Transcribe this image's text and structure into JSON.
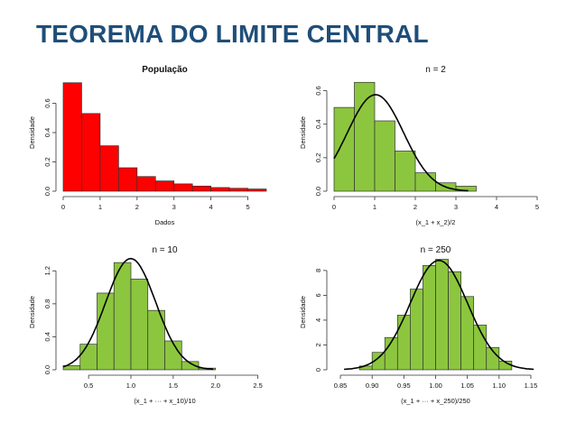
{
  "page": {
    "title": "TEOREMA DO LIMITE CENTRAL"
  },
  "colors": {
    "title": "#1f4e79",
    "population_bar": "#ff0000",
    "sample_bar": "#8cc63f",
    "curve": "#000000"
  },
  "chart_data": [
    {
      "type": "bar",
      "title": "População",
      "xlabel": "Dados",
      "ylabel": "Densidade",
      "bin_width": 0.5,
      "bins_start": 0,
      "values": [
        0.74,
        0.53,
        0.31,
        0.16,
        0.1,
        0.07,
        0.05,
        0.035,
        0.025,
        0.02,
        0.015
      ],
      "xlim": [
        0,
        5.5
      ],
      "ylim": [
        0,
        0.8
      ],
      "xticks": [
        "0",
        "1",
        "2",
        "3",
        "4",
        "5"
      ],
      "xtick_values": [
        0,
        1,
        2,
        3,
        4,
        5
      ],
      "yticks": [
        "0.0",
        "0.2",
        "0.4",
        "0.6"
      ],
      "ytick_values": [
        0,
        0.2,
        0.4,
        0.6
      ],
      "bar_color": "#ff0000",
      "curve": false
    },
    {
      "type": "bar",
      "title": "n = 2",
      "xlabel": "(x_1 + x_2)/2",
      "ylabel": "Densidade",
      "bin_width": 0.5,
      "bins_start": 0,
      "values": [
        0.5,
        0.65,
        0.42,
        0.24,
        0.11,
        0.05,
        0.03
      ],
      "xlim": [
        0,
        5
      ],
      "ylim": [
        0,
        0.7
      ],
      "xticks": [
        "0",
        "1",
        "2",
        "3",
        "4",
        "5"
      ],
      "xtick_values": [
        0,
        1,
        2,
        3,
        4,
        5
      ],
      "yticks": [
        "0.0",
        "0.2",
        "0.4",
        "0.6"
      ],
      "ytick_values": [
        0,
        0.2,
        0.4,
        0.6
      ],
      "bar_color": "#8cc63f",
      "curve": true
    },
    {
      "type": "bar",
      "title": "n = 10",
      "xlabel": "(x_1 + ··· + x_10)/10",
      "ylabel": "Densidade",
      "bin_width": 0.2,
      "bins_start": 0.2,
      "values": [
        0.05,
        0.31,
        0.93,
        1.3,
        1.1,
        0.72,
        0.35,
        0.1,
        0.02
      ],
      "xlim": [
        0.2,
        2.6
      ],
      "ylim": [
        0,
        1.4
      ],
      "xticks": [
        "0.5",
        "1.0",
        "1.5",
        "2.0",
        "2.5"
      ],
      "xtick_values": [
        0.5,
        1.0,
        1.5,
        2.0,
        2.5
      ],
      "yticks": [
        "0.0",
        "0.4",
        "0.8",
        "1.2"
      ],
      "ytick_values": [
        0,
        0.4,
        0.8,
        1.2
      ],
      "bar_color": "#8cc63f",
      "curve": true
    },
    {
      "type": "bar",
      "title": "n = 250",
      "xlabel": "(x_1 + ··· + x_250)/250",
      "ylabel": "Densidade",
      "bin_width": 0.02,
      "bins_start": 0.88,
      "values": [
        0.3,
        1.4,
        2.6,
        4.4,
        6.5,
        8.4,
        8.9,
        7.9,
        5.9,
        3.6,
        1.8,
        0.7
      ],
      "xlim": [
        0.84,
        1.16
      ],
      "ylim": [
        0,
        9.3
      ],
      "xticks": [
        "0.85",
        "0.90",
        "0.95",
        "1.00",
        "1.05",
        "1.10",
        "1.15"
      ],
      "xtick_values": [
        0.85,
        0.9,
        0.95,
        1.0,
        1.05,
        1.1,
        1.15
      ],
      "yticks": [
        "0",
        "2",
        "4",
        "6",
        "8"
      ],
      "ytick_values": [
        0,
        2,
        4,
        6,
        8
      ],
      "bar_color": "#8cc63f",
      "curve": true
    }
  ]
}
